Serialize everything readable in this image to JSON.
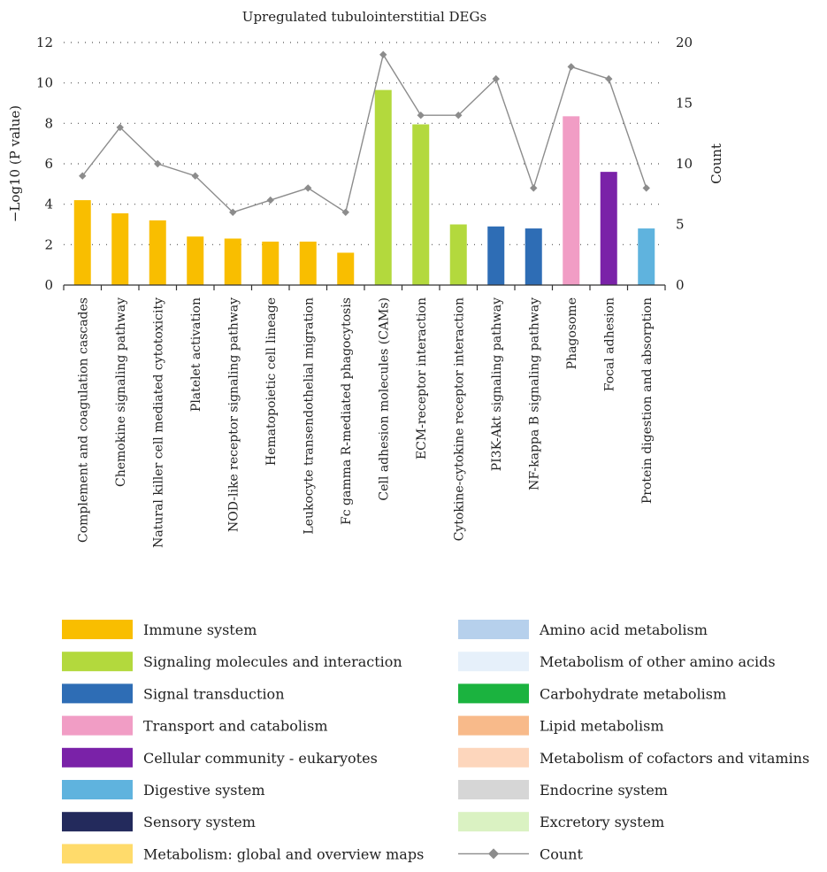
{
  "chart_data": {
    "type": "bar",
    "title": "Upregulated tubulointerstitial DEGs",
    "ylabel": "−Log10 (P value)",
    "y2label": "Count",
    "ylim": [
      0,
      12
    ],
    "y2lim": [
      0,
      20
    ],
    "yticks": [
      "0",
      "2",
      "4",
      "6",
      "8",
      "10",
      "12"
    ],
    "y2ticks": [
      "0",
      "5",
      "10",
      "15",
      "20"
    ],
    "grid": true,
    "categories": [
      "Complement and coagulation cascades",
      "Chemokine signaling pathway",
      "Natural killer cell mediated cytotoxicity",
      "Platelet activation",
      "NOD-like receptor signaling pathway",
      "Hematopoietic cell lineage",
      "Leukocyte transendothelial migration",
      "Fc gamma R-mediated phagocytosis",
      "Cell adhesion molecules (CAMs)",
      "ECM-receptor interaction",
      "Cytokine-cytokine receptor interaction",
      "PI3K-Akt signaling pathway",
      "NF-kappa B signaling pathway",
      "Phagosome",
      "Focal adhesion",
      "Protein digestion and absorption"
    ],
    "values": [
      4.2,
      3.55,
      3.2,
      2.4,
      2.3,
      2.15,
      2.15,
      1.6,
      9.65,
      7.95,
      3.0,
      2.9,
      2.8,
      8.35,
      5.6,
      2.8
    ],
    "bar_groups": [
      "Immune system",
      "Immune system",
      "Immune system",
      "Immune system",
      "Immune system",
      "Immune system",
      "Immune system",
      "Immune system",
      "Signaling molecules and interaction",
      "Signaling molecules and interaction",
      "Signaling molecules and interaction",
      "Signal transduction",
      "Signal transduction",
      "Transport and catabolism",
      "Cellular community - eukaryotes",
      "Digestive system"
    ],
    "count_series": {
      "name": "Count",
      "values": [
        9,
        13,
        10,
        9,
        6,
        7,
        8,
        6,
        19,
        14,
        14,
        17,
        8,
        18,
        17,
        8
      ]
    },
    "legend_placement": "bottom",
    "legend": [
      {
        "label": "Immune system",
        "color": "#F9BE00"
      },
      {
        "label": "Signaling molecules and interaction",
        "color": "#B3D93D"
      },
      {
        "label": "Signal transduction",
        "color": "#2E6DB5"
      },
      {
        "label": "Transport and catabolism",
        "color": "#F19DC5"
      },
      {
        "label": "Cellular community - eukaryotes",
        "color": "#7A22A8"
      },
      {
        "label": "Digestive system",
        "color": "#5FB3DE"
      },
      {
        "label": "Sensory system",
        "color": "#232A5C"
      },
      {
        "label": "Metabolism: global and overview maps",
        "color": "#FFDB6B"
      },
      {
        "label": "Amino acid metabolism",
        "color": "#B6D0EC"
      },
      {
        "label": "Metabolism of other amino acids",
        "color": "#E6F0FA"
      },
      {
        "label": "Carbohydrate metabolism",
        "color": "#1BB33F"
      },
      {
        "label": "Lipid metabolism",
        "color": "#F8BA8A"
      },
      {
        "label": "Metabolism of cofactors and vitamins",
        "color": "#FDD6BC"
      },
      {
        "label": "Endocrine system",
        "color": "#D6D6D6"
      },
      {
        "label": "Excretory system",
        "color": "#DAF2C2"
      }
    ],
    "count_legend_label": "Count",
    "count_line_color": "#8C8C8C",
    "count_marker_color": "#8C8C8C"
  }
}
